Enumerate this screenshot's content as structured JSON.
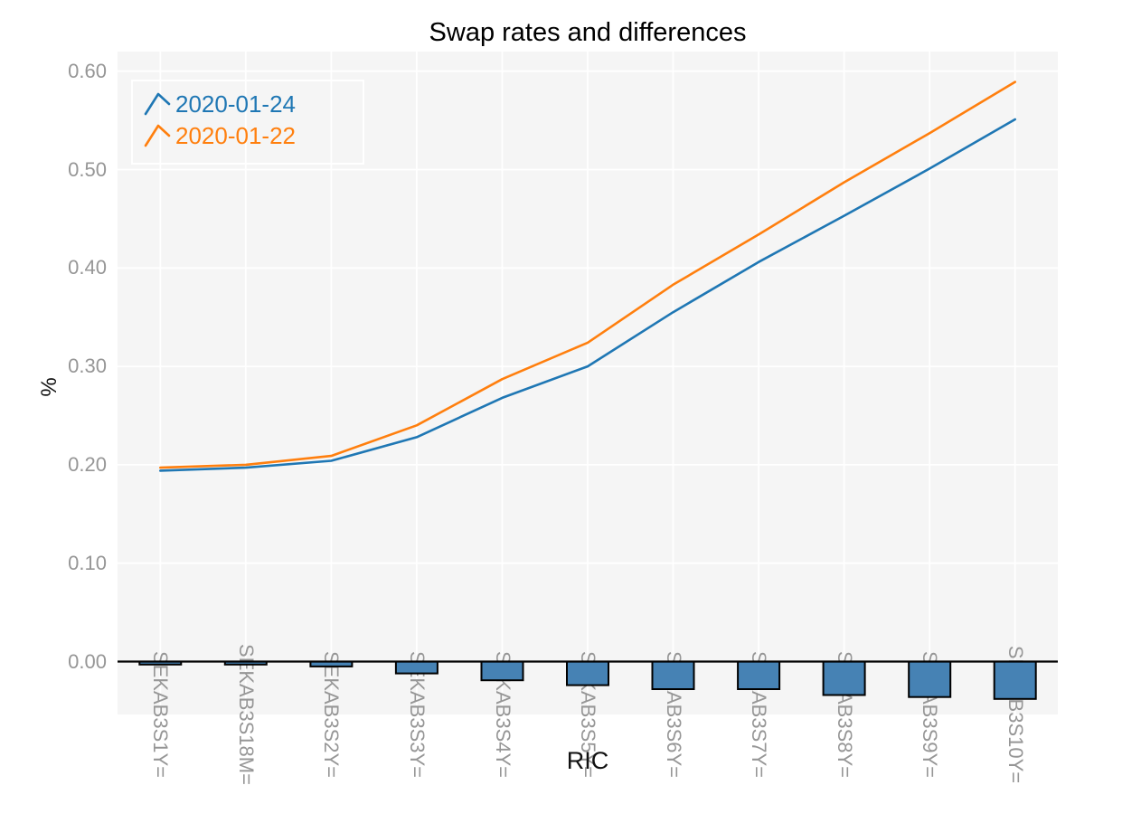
{
  "page": {
    "background": "#ffffff"
  },
  "chart_data": {
    "type": "line+bar",
    "title": "Swap rates and differences",
    "xlabel": "RIC",
    "ylabel": "%",
    "categories": [
      "SEKAB3S1Y=",
      "SEKAB3S18M=",
      "SEKAB3S2Y=",
      "SEKAB3S3Y=",
      "SEKAB3S4Y=",
      "SEKAB3S5Y=",
      "SEKAB3S6Y=",
      "SEKAB3S7Y=",
      "SEKAB3S8Y=",
      "SEKAB3S9Y=",
      "SEKAB3S10Y="
    ],
    "series": [
      {
        "name": "2020-01-24",
        "type": "line",
        "color": "#1f77b4",
        "values": [
          0.194,
          0.197,
          0.204,
          0.228,
          0.268,
          0.3,
          0.355,
          0.406,
          0.453,
          0.501,
          0.551
        ]
      },
      {
        "name": "2020-01-22",
        "type": "line",
        "color": "#ff7f0e",
        "values": [
          0.197,
          0.2,
          0.209,
          0.24,
          0.287,
          0.324,
          0.383,
          0.434,
          0.487,
          0.537,
          0.589
        ]
      }
    ],
    "bars": {
      "name": "difference",
      "color": "#4682b4",
      "border_color": "#000000",
      "values": [
        -0.003,
        -0.003,
        -0.005,
        -0.012,
        -0.019,
        -0.024,
        -0.028,
        -0.028,
        -0.034,
        -0.036,
        -0.038
      ]
    },
    "ytick_values": [
      0.0,
      0.1,
      0.2,
      0.3,
      0.4,
      0.5,
      0.6
    ],
    "ytick_labels": [
      "0.00",
      "0.10",
      "0.20",
      "0.30",
      "0.40",
      "0.50",
      "0.60"
    ],
    "ylim": [
      -0.0538,
      0.6199
    ],
    "grid": "white major gridlines on gray panel",
    "legend_position": "top-left",
    "panel_background": "#f5f5f5",
    "gridline_color": "#ffffff",
    "zero_line_color": "#000000",
    "tick_label_color": "#969696"
  },
  "legend": {
    "items": [
      {
        "label": "2020-01-24",
        "color": "#1f77b4"
      },
      {
        "label": "2020-01-22",
        "color": "#ff7f0e"
      }
    ]
  }
}
